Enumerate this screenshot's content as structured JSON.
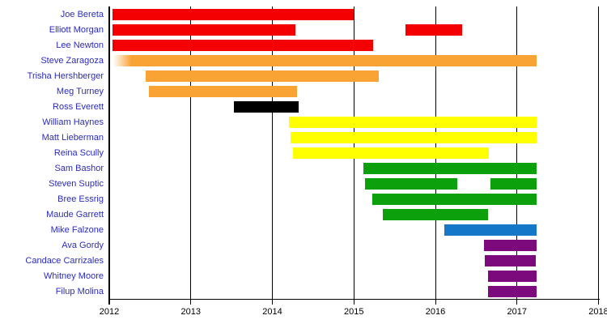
{
  "chart_data": {
    "type": "bar",
    "subtype": "timeline-gantt",
    "title": "",
    "xlabel": "",
    "ylabel": "",
    "x_axis": {
      "min": 2012,
      "max": 2018,
      "ticks": [
        2012,
        2013,
        2014,
        2015,
        2016,
        2017,
        2018
      ],
      "tick_labels": [
        "2012",
        "2013",
        "2014",
        "2015",
        "2016",
        "2017",
        "2018"
      ]
    },
    "legend": "none",
    "grid": "vertical-year-lines",
    "rows": [
      {
        "label": "Joe Bereta",
        "color_key": "red",
        "segments": [
          [
            2012.04,
            2015.0
          ]
        ]
      },
      {
        "label": "Elliott Morgan",
        "color_key": "red",
        "segments": [
          [
            2012.04,
            2014.28
          ],
          [
            2015.63,
            2016.33
          ]
        ]
      },
      {
        "label": "Lee Newton",
        "color_key": "red",
        "segments": [
          [
            2012.04,
            2015.24
          ]
        ]
      },
      {
        "label": "Steve Zaragoza",
        "color_key": "orange",
        "segments": [
          [
            2012.05,
            2017.24
          ]
        ],
        "fade_in": true
      },
      {
        "label": "Trisha Hershberger",
        "color_key": "orange",
        "segments": [
          [
            2012.45,
            2015.31
          ]
        ]
      },
      {
        "label": "Meg Turney",
        "color_key": "orange",
        "segments": [
          [
            2012.49,
            2014.3
          ]
        ]
      },
      {
        "label": "Ross Everett",
        "color_key": "black",
        "segments": [
          [
            2013.53,
            2014.32
          ]
        ]
      },
      {
        "label": "William Haynes",
        "color_key": "yellow",
        "segments": [
          [
            2014.2,
            2017.24
          ]
        ]
      },
      {
        "label": "Matt Lieberman",
        "color_key": "yellow",
        "segments": [
          [
            2014.22,
            2017.24
          ]
        ]
      },
      {
        "label": "Reina Scully",
        "color_key": "yellow",
        "segments": [
          [
            2014.25,
            2016.66
          ]
        ]
      },
      {
        "label": "Sam Bashor",
        "color_key": "green",
        "segments": [
          [
            2015.12,
            2017.24
          ]
        ]
      },
      {
        "label": "Steven Suptic",
        "color_key": "green",
        "segments": [
          [
            2015.14,
            2016.27
          ],
          [
            2016.67,
            2017.24
          ]
        ]
      },
      {
        "label": "Bree Essrig",
        "color_key": "green",
        "segments": [
          [
            2015.23,
            2017.24
          ]
        ]
      },
      {
        "label": "Maude Garrett",
        "color_key": "green",
        "segments": [
          [
            2015.35,
            2016.65
          ]
        ]
      },
      {
        "label": "Mike Falzone",
        "color_key": "blue",
        "segments": [
          [
            2016.11,
            2017.24
          ]
        ]
      },
      {
        "label": "Ava Gordy",
        "color_key": "purple",
        "segments": [
          [
            2016.6,
            2017.24
          ]
        ]
      },
      {
        "label": "Candace Carrizales",
        "color_key": "purple",
        "segments": [
          [
            2016.61,
            2017.23
          ]
        ]
      },
      {
        "label": "Whitney Moore",
        "color_key": "purple",
        "segments": [
          [
            2016.65,
            2017.24
          ]
        ]
      },
      {
        "label": "Filup Molina",
        "color_key": "purple",
        "segments": [
          [
            2016.65,
            2017.24
          ]
        ]
      }
    ],
    "colors": {
      "red": "#F40000",
      "orange": "#F9A335",
      "yellow": "#FFFF00",
      "green": "#0DA00D",
      "blue": "#1577C8",
      "purple": "#7D0A7D",
      "black": "#000000",
      "person_label": "#2B2BBD",
      "axis": "#000000"
    }
  }
}
